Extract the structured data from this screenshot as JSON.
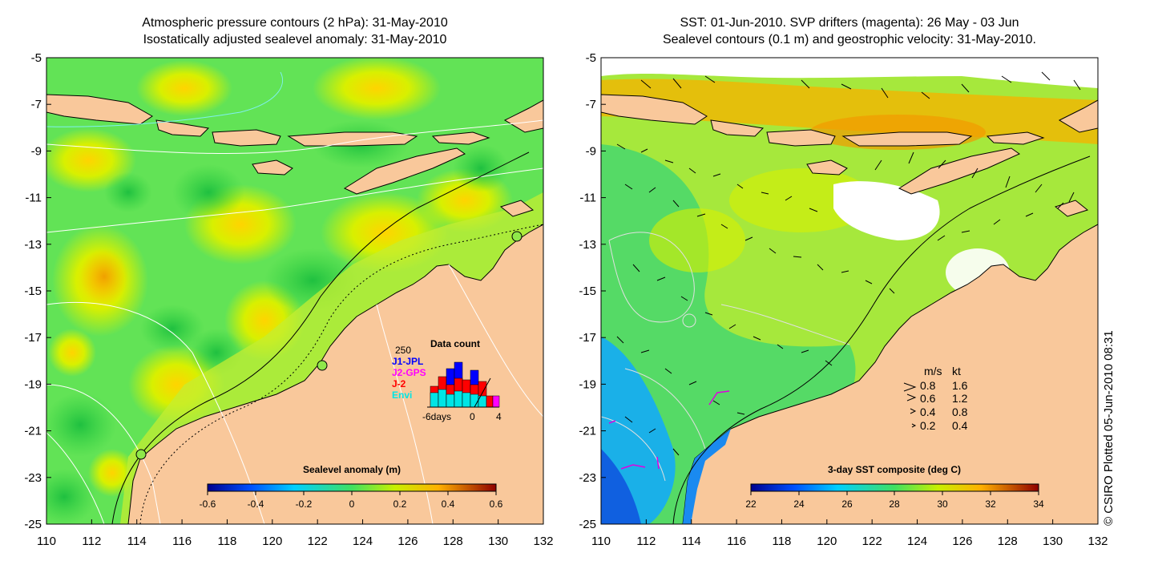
{
  "left_panel": {
    "title_line1": "Atmospheric pressure contours (2 hPa): 31-May-2010",
    "title_line2": "Isostatically adjusted sealevel anomaly: 31-May-2010",
    "colorbar": {
      "title": "Sealevel anomaly (m)",
      "ticks": [
        "-0.6",
        "-0.4",
        "-0.2",
        "0",
        "0.2",
        "0.4",
        "0.6"
      ]
    },
    "data_count": {
      "title": "Data count",
      "max_label": "250",
      "sources": [
        {
          "name": "J1-JPL",
          "color": "#0000ff"
        },
        {
          "name": "J2-GPS",
          "color": "#ff00ff"
        },
        {
          "name": "J-2",
          "color": "#ff0000"
        },
        {
          "name": "Envi",
          "color": "#00e5e5"
        }
      ],
      "axis_start": "-6days",
      "axis_mid": "0",
      "axis_end": "4"
    }
  },
  "right_panel": {
    "title_line1": "SST: 01-Jun-2010. SVP drifters (magenta): 26 May - 03 Jun",
    "title_line2": "Sealevel contours (0.1 m) and geostrophic velocity: 31-May-2010.",
    "colorbar": {
      "title": "3-day SST composite (deg C)",
      "ticks": [
        "22",
        "24",
        "26",
        "28",
        "30",
        "32",
        "34"
      ]
    },
    "velocity_legend": {
      "header_ms": "m/s",
      "header_kt": "kt",
      "rows": [
        {
          "ms": "0.8",
          "kt": "1.6"
        },
        {
          "ms": "0.6",
          "kt": "1.2"
        },
        {
          "ms": "0.4",
          "kt": "0.8"
        },
        {
          "ms": "0.2",
          "kt": "0.4"
        }
      ]
    }
  },
  "axes": {
    "lat_labels": [
      "-5",
      "-7",
      "-9",
      "-11",
      "-13",
      "-15",
      "-17",
      "-19",
      "-21",
      "-23",
      "-25"
    ],
    "lon_labels": [
      "110",
      "112",
      "114",
      "116",
      "118",
      "120",
      "122",
      "124",
      "126",
      "128",
      "130",
      "132"
    ]
  },
  "credit": "© CSIRO Plotted 05-Jun-2010 08:31",
  "colors": {
    "land": "#f9c89b",
    "ocean_left": "#5fe35a",
    "ocean_right": "#9ee83c"
  }
}
